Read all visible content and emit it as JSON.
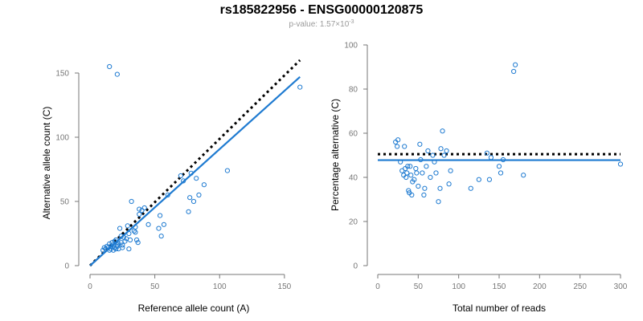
{
  "header": {
    "title": "rs185822956 - ENSG00000120875",
    "pvalue_prefix": "p-value: 1.57×10",
    "pvalue_exponent": "-3"
  },
  "colors": {
    "points": "#1f7bd1",
    "fit": "#1f7bd1",
    "reference": "#000000",
    "axis": "#777777"
  },
  "chart_data": [
    {
      "type": "scatter",
      "xlabel": "Reference allele count (A)",
      "ylabel": "Alternative allele count (C)",
      "xlim": [
        0,
        160
      ],
      "ylim": [
        0,
        160
      ],
      "xticks": [
        0,
        50,
        100,
        150
      ],
      "yticks": [
        0,
        50,
        100,
        150
      ],
      "fit_line": {
        "x": [
          0,
          162
        ],
        "y": [
          0,
          147
        ],
        "style": "solid"
      },
      "reference_line": {
        "x": [
          0,
          162
        ],
        "y": [
          0,
          160
        ],
        "style": "dotted"
      },
      "x": [
        10,
        11,
        12,
        13,
        14,
        15,
        15,
        16,
        16,
        17,
        18,
        18,
        19,
        19,
        20,
        20,
        21,
        21,
        22,
        22,
        23,
        24,
        24,
        25,
        25,
        26,
        27,
        28,
        29,
        30,
        30,
        31,
        32,
        34,
        35,
        35,
        36,
        37,
        38,
        38,
        40,
        42,
        45,
        53,
        54,
        55,
        57,
        60,
        70,
        72,
        76,
        77,
        78,
        80,
        82,
        84,
        88,
        106,
        15,
        21,
        162
      ],
      "y": [
        12,
        14,
        13,
        15,
        14,
        12,
        17,
        15,
        13,
        18,
        16,
        12,
        14,
        19,
        13,
        20,
        16,
        15,
        17,
        13,
        29,
        18,
        23,
        14,
        16,
        22,
        19,
        21,
        31,
        13,
        25,
        20,
        50,
        27,
        26,
        30,
        20,
        18,
        44,
        40,
        43,
        45,
        32,
        29,
        39,
        23,
        32,
        55,
        70,
        66,
        42,
        53,
        72,
        50,
        68,
        55,
        63,
        74,
        155,
        149,
        139
      ]
    },
    {
      "type": "scatter",
      "xlabel": "Total number of reads",
      "ylabel": "Percentage alternative (C)",
      "xlim": [
        0,
        300
      ],
      "ylim": [
        0,
        100
      ],
      "xticks": [
        0,
        50,
        100,
        150,
        200,
        250,
        300
      ],
      "yticks": [
        0,
        20,
        40,
        60,
        80,
        100
      ],
      "fit_line": {
        "x": [
          0,
          300
        ],
        "y": [
          47.8,
          47.8
        ],
        "style": "solid"
      },
      "reference_line": {
        "x": [
          0,
          300
        ],
        "y": [
          50.5,
          50.5
        ],
        "style": "dotted"
      },
      "x": [
        22,
        24,
        25,
        28,
        30,
        32,
        33,
        34,
        35,
        36,
        37,
        38,
        39,
        40,
        41,
        42,
        43,
        45,
        47,
        48,
        50,
        52,
        53,
        55,
        57,
        58,
        60,
        62,
        65,
        68,
        70,
        72,
        75,
        77,
        78,
        80,
        82,
        85,
        88,
        90,
        115,
        125,
        135,
        138,
        140,
        150,
        152,
        155,
        168,
        170,
        180,
        300
      ],
      "y": [
        56,
        54,
        57,
        47,
        43,
        41,
        54,
        44,
        40,
        42,
        45,
        34,
        33,
        45,
        41,
        32,
        38,
        39,
        44,
        42,
        36,
        55,
        48,
        42,
        32,
        35,
        45,
        52,
        40,
        50,
        47,
        42,
        29,
        35,
        53,
        61,
        50,
        52,
        37,
        43,
        35,
        39,
        51,
        39,
        49,
        45,
        42,
        48,
        88,
        91,
        41,
        46
      ]
    }
  ]
}
